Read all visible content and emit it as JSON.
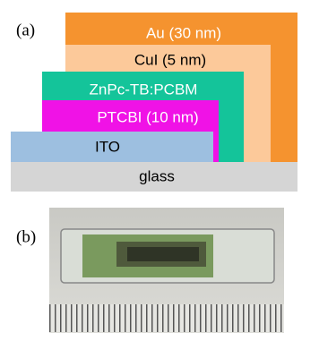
{
  "panel_a": {
    "label": "(a)",
    "layers": [
      "Au (30 nm)",
      "CuI (5 nm)",
      "ZnPc-TB:PCBM",
      "PTCBI (10 nm)",
      "ITO",
      "glass"
    ]
  },
  "panel_b": {
    "label": "(b)"
  }
}
